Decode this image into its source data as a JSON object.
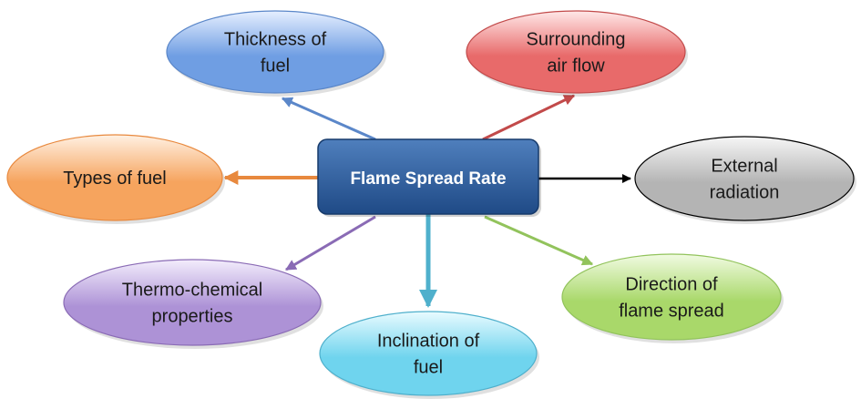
{
  "diagram": {
    "center": {
      "label": "Flame Spread Rate",
      "fill_top": "#4f7fbd",
      "fill_bottom": "#1f4a86",
      "text_color": "#ffffff"
    },
    "factors": [
      {
        "id": "thickness",
        "lines": [
          "Thickness of",
          "fuel"
        ],
        "color": "#6f9ee3",
        "light": "#e6efff",
        "arrow": "#5b87c9"
      },
      {
        "id": "airflow",
        "lines": [
          "Surrounding",
          "air flow"
        ],
        "color": "#e86a6a",
        "light": "#ffe8e8",
        "arrow": "#c24a4a"
      },
      {
        "id": "radiation",
        "lines": [
          "External",
          "radiation"
        ],
        "color": "#b4b4b4",
        "light": "#f6f6f6",
        "arrow": "#000000"
      },
      {
        "id": "direction",
        "lines": [
          "Direction of",
          "flame spread"
        ],
        "color": "#a9d86a",
        "light": "#f1fbe2",
        "arrow": "#92c35c"
      },
      {
        "id": "inclination",
        "lines": [
          "Inclination of",
          "fuel"
        ],
        "color": "#6fd4ee",
        "light": "#e9fbff",
        "arrow": "#4fb0cc"
      },
      {
        "id": "thermo",
        "lines": [
          "Thermo-chemical",
          "properties"
        ],
        "color": "#ad92d6",
        "light": "#f3edfc",
        "arrow": "#8a6bb5"
      },
      {
        "id": "types",
        "lines": [
          "Types of fuel"
        ],
        "color": "#f6a45e",
        "light": "#fff1e3",
        "arrow": "#e8893e"
      }
    ]
  }
}
